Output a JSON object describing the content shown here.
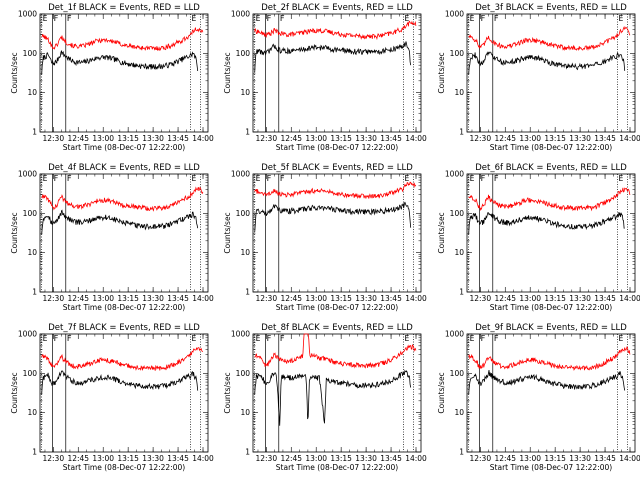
{
  "chart_data": [
    {
      "type": "line",
      "title": "Det_1f BLACK = Events, RED = LLD",
      "variant": "A"
    },
    {
      "type": "line",
      "title": "Det_2f BLACK = Events, RED = LLD",
      "variant": "B"
    },
    {
      "type": "line",
      "title": "Det_3f BLACK = Events, RED = LLD",
      "variant": "A"
    },
    {
      "type": "line",
      "title": "Det_4f BLACK = Events, RED = LLD",
      "variant": "A"
    },
    {
      "type": "line",
      "title": "Det_5f BLACK = Events, RED = LLD",
      "variant": "B"
    },
    {
      "type": "line",
      "title": "Det_6f BLACK = Events, RED = LLD",
      "variant": "A"
    },
    {
      "type": "line",
      "title": "Det_7f BLACK = Events, RED = LLD",
      "variant": "A"
    },
    {
      "type": "line",
      "title": "Det_8f BLACK = Events, RED = LLD",
      "variant": "C"
    },
    {
      "type": "line",
      "title": "Det_9f BLACK = Events, RED = LLD",
      "variant": "A"
    }
  ],
  "common": {
    "xlabel": "Start Time (08-Dec-07 12:22:00)",
    "ylabel": "Counts/sec",
    "x_tick_labels": [
      "12:30",
      "12:45",
      "13:00",
      "13:15",
      "13:30",
      "13:45",
      "14:00"
    ],
    "x_tick_minutes": [
      8,
      23,
      38,
      53,
      68,
      83,
      98
    ],
    "xlim_minutes": [
      0,
      101
    ],
    "y_scale": "log",
    "ylim": [
      1,
      1000
    ],
    "y_tick_labels": [
      "1",
      "10",
      "100",
      "1000"
    ],
    "y_tick_values": [
      1,
      10,
      100,
      1000
    ],
    "markers": [
      {
        "label": "E",
        "minute": 1.0,
        "style": "dotted"
      },
      {
        "label": "F",
        "minute": 7.5,
        "style": "solid"
      },
      {
        "label": "F",
        "minute": 15.5,
        "style": "solid"
      },
      {
        "label": "E",
        "minute": 90.5,
        "style": "dotted"
      },
      {
        "label": "",
        "minute": 96.5,
        "style": "dotted"
      }
    ],
    "series": [
      {
        "name": "Events",
        "color": "#000000"
      },
      {
        "name": "LLD",
        "color": "#ff0000"
      }
    ],
    "profiles": {
      "A": {
        "black": [
          [
            1,
            32
          ],
          [
            2,
            78
          ],
          [
            5,
            92
          ],
          [
            7,
            58
          ],
          [
            8,
            55
          ],
          [
            10,
            62
          ],
          [
            13,
            110
          ],
          [
            14,
            95
          ],
          [
            16,
            80
          ],
          [
            20,
            62
          ],
          [
            25,
            58
          ],
          [
            30,
            66
          ],
          [
            35,
            78
          ],
          [
            40,
            80
          ],
          [
            45,
            70
          ],
          [
            50,
            58
          ],
          [
            55,
            52
          ],
          [
            60,
            48
          ],
          [
            65,
            46
          ],
          [
            70,
            46
          ],
          [
            75,
            48
          ],
          [
            80,
            55
          ],
          [
            85,
            70
          ],
          [
            90,
            85
          ],
          [
            92,
            100
          ],
          [
            94,
            70
          ],
          [
            95,
            32
          ]
        ],
        "red": [
          [
            1,
            280
          ],
          [
            3,
            260
          ],
          [
            6,
            200
          ],
          [
            7,
            150
          ],
          [
            8,
            140
          ],
          [
            10,
            160
          ],
          [
            13,
            270
          ],
          [
            14,
            230
          ],
          [
            16,
            190
          ],
          [
            20,
            155
          ],
          [
            25,
            150
          ],
          [
            30,
            175
          ],
          [
            35,
            215
          ],
          [
            40,
            220
          ],
          [
            45,
            195
          ],
          [
            50,
            165
          ],
          [
            55,
            150
          ],
          [
            60,
            140
          ],
          [
            65,
            135
          ],
          [
            70,
            135
          ],
          [
            75,
            140
          ],
          [
            80,
            165
          ],
          [
            85,
            210
          ],
          [
            90,
            280
          ],
          [
            93,
            400
          ],
          [
            96,
            420
          ],
          [
            98,
            330
          ]
        ]
      },
      "B": {
        "black": [
          [
            1,
            35
          ],
          [
            2,
            120
          ],
          [
            5,
            110
          ],
          [
            7,
            100
          ],
          [
            8,
            100
          ],
          [
            10,
            118
          ],
          [
            13,
            160
          ],
          [
            14,
            140
          ],
          [
            16,
            120
          ],
          [
            20,
            115
          ],
          [
            25,
            118
          ],
          [
            30,
            128
          ],
          [
            35,
            138
          ],
          [
            40,
            142
          ],
          [
            45,
            135
          ],
          [
            50,
            125
          ],
          [
            55,
            118
          ],
          [
            60,
            112
          ],
          [
            65,
            110
          ],
          [
            70,
            110
          ],
          [
            75,
            112
          ],
          [
            80,
            118
          ],
          [
            85,
            130
          ],
          [
            90,
            150
          ],
          [
            92,
            180
          ],
          [
            94,
            120
          ],
          [
            95,
            35
          ]
        ],
        "red": [
          [
            1,
            380
          ],
          [
            3,
            360
          ],
          [
            6,
            310
          ],
          [
            7,
            300
          ],
          [
            8,
            300
          ],
          [
            10,
            310
          ],
          [
            13,
            390
          ],
          [
            14,
            360
          ],
          [
            16,
            320
          ],
          [
            20,
            300
          ],
          [
            25,
            310
          ],
          [
            30,
            340
          ],
          [
            35,
            375
          ],
          [
            40,
            385
          ],
          [
            45,
            360
          ],
          [
            50,
            325
          ],
          [
            55,
            300
          ],
          [
            60,
            285
          ],
          [
            65,
            275
          ],
          [
            70,
            270
          ],
          [
            75,
            275
          ],
          [
            80,
            300
          ],
          [
            85,
            350
          ],
          [
            90,
            420
          ],
          [
            93,
            560
          ],
          [
            96,
            610
          ],
          [
            98,
            520
          ]
        ]
      },
      "C": {
        "black": [
          [
            1,
            32
          ],
          [
            2,
            80
          ],
          [
            5,
            92
          ],
          [
            7,
            60
          ],
          [
            8,
            55
          ],
          [
            10,
            65
          ],
          [
            13,
            115
          ],
          [
            14,
            95
          ],
          [
            15,
            30
          ],
          [
            16,
            4
          ],
          [
            17,
            90
          ],
          [
            20,
            75
          ],
          [
            25,
            80
          ],
          [
            30,
            88
          ],
          [
            32,
            90
          ],
          [
            33,
            4
          ],
          [
            34,
            80
          ],
          [
            38,
            78
          ],
          [
            40,
            75
          ],
          [
            43,
            5
          ],
          [
            44,
            70
          ],
          [
            48,
            62
          ],
          [
            50,
            60
          ],
          [
            55,
            55
          ],
          [
            60,
            52
          ],
          [
            65,
            50
          ],
          [
            70,
            50
          ],
          [
            75,
            52
          ],
          [
            80,
            58
          ],
          [
            85,
            75
          ],
          [
            90,
            95
          ],
          [
            92,
            110
          ],
          [
            94,
            80
          ],
          [
            95,
            32
          ]
        ],
        "red": [
          [
            1,
            280
          ],
          [
            3,
            300
          ],
          [
            6,
            220
          ],
          [
            7,
            170
          ],
          [
            8,
            160
          ],
          [
            10,
            190
          ],
          [
            13,
            320
          ],
          [
            14,
            280
          ],
          [
            16,
            220
          ],
          [
            20,
            200
          ],
          [
            25,
            220
          ],
          [
            28,
            260
          ],
          [
            30,
            280
          ],
          [
            31,
            2000
          ],
          [
            33,
            2000
          ],
          [
            34,
            300
          ],
          [
            38,
            260
          ],
          [
            40,
            250
          ],
          [
            45,
            220
          ],
          [
            50,
            190
          ],
          [
            55,
            175
          ],
          [
            60,
            165
          ],
          [
            65,
            160
          ],
          [
            70,
            160
          ],
          [
            75,
            165
          ],
          [
            80,
            195
          ],
          [
            85,
            250
          ],
          [
            90,
            330
          ],
          [
            93,
            450
          ],
          [
            96,
            480
          ],
          [
            98,
            380
          ]
        ]
      }
    }
  }
}
